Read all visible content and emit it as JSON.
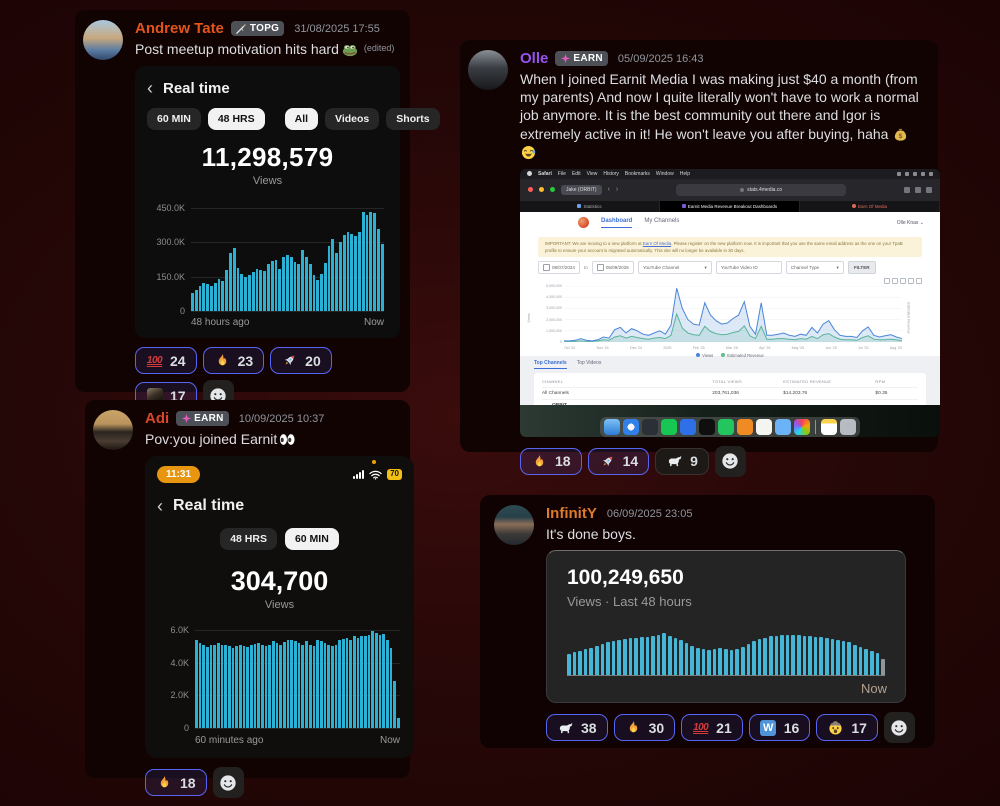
{
  "colors": {
    "blurple": "#5865f2",
    "bar_cyan": "#2ab1d4",
    "bar_cyan_small": "#45b6d6",
    "bar_last_gray": "#8b979c",
    "tate_orange": "#e2561b",
    "olle_purple": "#9752f0",
    "adi_red": "#d8472b",
    "infinity_orange": "#dd7a2c"
  },
  "messages": {
    "tate": {
      "username": "Andrew Tate",
      "badge": "TOPG",
      "timestamp": "31/08/2025 17:55",
      "text": "Post meetup motivation hits hard",
      "edited": "(edited)",
      "shot": {
        "back": "‹",
        "title": "Real time",
        "chips": [
          "60 MIN",
          "48 HRS",
          "All",
          "Videos",
          "Shorts"
        ],
        "views": "11,298,579",
        "views_label": "Views"
      },
      "reactions": [
        {
          "icon": "hundred",
          "count": "24",
          "reacted": true
        },
        {
          "icon": "fire",
          "count": "23",
          "reacted": true
        },
        {
          "icon": "rocket",
          "count": "20",
          "reacted": true
        },
        {
          "icon": "tateface",
          "count": "17",
          "reacted": true
        }
      ]
    },
    "olle": {
      "username": "Olle",
      "badge": "EARN",
      "timestamp": "05/09/2025 16:43",
      "text": "When I joined Earnit Media I was making just $40 a month (from my parents) And now I quite literally won't have to work a normal job anymore. It is the best community out there and Igor is extremely active in it! He won't leave you after buying, haha",
      "reactions": [
        {
          "icon": "fire",
          "count": "18",
          "reacted": true
        },
        {
          "icon": "rocket",
          "count": "14",
          "reacted": true
        },
        {
          "icon": "goat",
          "count": "9",
          "reacted": false
        }
      ]
    },
    "adi": {
      "username": "Adi",
      "badge": "EARN",
      "timestamp": "10/09/2025 10:37",
      "text": "Pov:you joined Earnit",
      "shot": {
        "back": "‹",
        "title": "Real time",
        "time": "11:31",
        "battery": "70",
        "chips": [
          "48 HRS",
          "60 MIN"
        ],
        "views": "304,700",
        "views_label": "Views"
      },
      "reactions": [
        {
          "icon": "fire",
          "count": "18",
          "reacted": true
        }
      ]
    },
    "infinity": {
      "username": "InfinitY",
      "timestamp": "06/09/2025 23:05",
      "text": "It's done boys.",
      "shot": {
        "views": "100,249,650",
        "subtitle": "Views · Last 48 hours",
        "now": "Now"
      },
      "reactions": [
        {
          "icon": "goat",
          "count": "38",
          "reacted": true
        },
        {
          "icon": "fire",
          "count": "30",
          "reacted": true
        },
        {
          "icon": "hundred",
          "count": "21",
          "reacted": true
        },
        {
          "icon": "wletter",
          "count": "16",
          "reacted": true
        },
        {
          "icon": "mindblown",
          "count": "17",
          "reacted": true
        }
      ]
    }
  },
  "mac": {
    "menu": [
      "Safari",
      "File",
      "Edit",
      "View",
      "History",
      "Bookmarks",
      "Window",
      "Help"
    ],
    "profile_pill": "Jake (ORBIT)",
    "url": "stats.4media.co",
    "browser_tabs": [
      "Statistics",
      "Earnit Media Revenue Breakout Dashboards",
      "Earn Of Media"
    ],
    "nav": {
      "dashboard": "Dashboard",
      "my_channels": "My Channels",
      "account": "Olle Knas ⌄"
    },
    "banner_pre": "IMPORTANT: We are moving to a new platform at ",
    "banner_link": "Earn Of Media",
    "banner_post": ". Please register on the new platform now. It is important that you use the same email address as the one on your TpaB profile to ensure your account is migrated automatically. This site will no longer be available in 30 days.",
    "filters": {
      "date_from": "08/07/2024",
      "to": "to",
      "date_to": "05/09/2025",
      "channel": "YouTube Channel",
      "video_id": "YouTube Video ID",
      "channel_type": "Channel Type",
      "filter_btn": "FILTER"
    },
    "lower_tabs": [
      "Top Channels",
      "Top Videos"
    ],
    "table": {
      "headers": [
        "CHANNEL",
        "TOTAL VIEWS",
        "ESTIMATED REVENUE",
        "RPM"
      ],
      "rows": [
        {
          "channel": "All Channels",
          "sub": "",
          "views": "203,761,036",
          "revenue": "$14,203.76",
          "rpm": "$0.35"
        },
        {
          "channel": "ORBIT",
          "sub": "aCkLSkqZwmV5SVZVteaBa",
          "views": "203,761,036",
          "revenue": "$14,203.76",
          "rpm": "$0.35"
        }
      ]
    }
  },
  "chart_data": [
    {
      "type": "bar",
      "title": "Real time views — last 48 hours",
      "views_total": "11,298,579",
      "ylabels": [
        "450.0K",
        "300.0K",
        "150.0K",
        "0"
      ],
      "ymax": 480,
      "x_left": "48 hours ago",
      "x_right": "Now",
      "color": "#2ab1d4",
      "values": [
        78,
        92,
        108,
        122,
        118,
        108,
        124,
        140,
        132,
        178,
        252,
        274,
        190,
        162,
        150,
        160,
        172,
        186,
        178,
        174,
        208,
        218,
        224,
        186,
        238,
        244,
        238,
        214,
        208,
        268,
        238,
        204,
        160,
        136,
        162,
        210,
        284,
        314,
        256,
        300,
        334,
        344,
        338,
        326,
        344,
        434,
        418,
        434,
        428,
        358,
        294
      ]
    },
    {
      "type": "bar",
      "title": "Real time views — last 60 minutes",
      "views_total": "304,700",
      "ylabels": [
        "6.0K",
        "4.0K",
        "2.0K",
        "0"
      ],
      "ymax": 6400,
      "x_left": "60 minutes ago",
      "x_right": "Now",
      "color": "#2ab1d4",
      "values": [
        5400,
        5200,
        5100,
        4950,
        5050,
        5100,
        5200,
        5100,
        5050,
        5000,
        4900,
        5000,
        5100,
        5000,
        4950,
        5100,
        5150,
        5200,
        5100,
        5000,
        5100,
        5300,
        5200,
        5100,
        5250,
        5350,
        5400,
        5300,
        5200,
        5100,
        5300,
        5100,
        5000,
        5350,
        5300,
        5200,
        5100,
        5000,
        5100,
        5400,
        5450,
        5500,
        5400,
        5600,
        5500,
        5650,
        5600,
        5700,
        5900,
        5800,
        5700,
        5750,
        5400,
        4900,
        2900,
        650
      ]
    },
    {
      "type": "bar",
      "title": "100,249,650 views — last 48 hours",
      "views_total": "100,249,650",
      "ymax": 100,
      "x_right": "Now",
      "color": "#45b6d6",
      "last_color": "#8b979c",
      "values": [
        40,
        44,
        47,
        50,
        53,
        56,
        60,
        63,
        66,
        68,
        70,
        71,
        72,
        73,
        74,
        75,
        78,
        81,
        76,
        72,
        67,
        62,
        57,
        53,
        50,
        48,
        50,
        52,
        50,
        48,
        51,
        55,
        60,
        65,
        69,
        72,
        75,
        76,
        77,
        78,
        78,
        77,
        76,
        75,
        74,
        73,
        72,
        70,
        68,
        66,
        63,
        59,
        55,
        51,
        47,
        43,
        32
      ]
    },
    {
      "type": "line",
      "title": "Earnit dashboard — Views vs Estimated Revenue",
      "x_labels": [
        "Oct '24",
        "Nov '24",
        "Dec '24",
        "2025",
        "Feb '25",
        "Mar '25",
        "Apr '25",
        "May '25",
        "Jun '25",
        "Jul '25",
        "Aug '25"
      ],
      "ylabels": [
        "5,000,000",
        "4,000,000",
        "3,000,000",
        "2,000,000",
        "1,000,000",
        "0"
      ],
      "axis_left": "Views",
      "axis_right": "Estimated Revenue",
      "legend": [
        "Views",
        "Estimated Revenue"
      ],
      "series": [
        {
          "name": "Views",
          "color": "#4a86d8",
          "values": [
            2,
            2,
            3,
            6,
            3,
            2,
            4,
            9,
            7,
            22,
            26,
            16,
            24,
            20,
            14,
            12,
            16,
            20,
            14,
            30,
            96,
            60,
            40,
            32,
            30,
            70,
            48,
            38,
            32,
            34,
            42,
            48,
            72,
            28,
            14,
            70,
            12,
            12,
            14,
            16,
            12,
            10,
            14,
            12,
            26,
            16,
            32,
            38,
            22,
            12,
            10,
            10,
            8,
            20,
            27,
            12,
            9,
            11,
            13,
            9,
            6
          ]
        },
        {
          "name": "Estimated Revenue",
          "color": "#5cbf8a",
          "values": [
            1,
            1,
            1,
            2,
            1,
            1,
            2,
            4,
            3,
            9,
            11,
            7,
            10,
            8,
            6,
            5,
            7,
            8,
            6,
            12,
            50,
            25,
            16,
            13,
            12,
            28,
            19,
            15,
            13,
            14,
            17,
            19,
            29,
            11,
            6,
            28,
            5,
            5,
            6,
            6,
            5,
            4,
            6,
            5,
            10,
            6,
            13,
            15,
            9,
            5,
            4,
            4,
            3,
            8,
            11,
            5,
            4,
            4,
            5,
            4,
            2
          ]
        }
      ]
    }
  ],
  "dock": [
    {
      "name": "finder",
      "bg": "linear-gradient(180deg,#7cc1f5,#2e7cd6)"
    },
    {
      "name": "safari",
      "bg": "radial-gradient(circle,#f5f7fa 0 30%,#2f80e8 31%)"
    },
    {
      "name": "discord",
      "bg": "#2b2f36"
    },
    {
      "name": "spotify",
      "bg": "#17c653"
    },
    {
      "name": "reminders",
      "bg": "#2f6fe8"
    },
    {
      "name": "capcut",
      "bg": "#0f0f0f"
    },
    {
      "name": "whatsapp",
      "bg": "#22c55e"
    },
    {
      "name": "pages",
      "bg": "#f08a24"
    },
    {
      "name": "golf",
      "bg": "#f5f5f0"
    },
    {
      "name": "folder",
      "bg": "#6cb2f7"
    },
    {
      "name": "photos",
      "bg": "conic-gradient(#f43f5e,#f59e0b,#84cc16,#22d3ee,#8b5cf6,#f43f5e)"
    },
    {
      "name": "notes",
      "bg": "linear-gradient(180deg,#fbd24b 28%,#ffffff 28%)"
    },
    {
      "name": "trash",
      "bg": "#b7bcc2"
    }
  ]
}
